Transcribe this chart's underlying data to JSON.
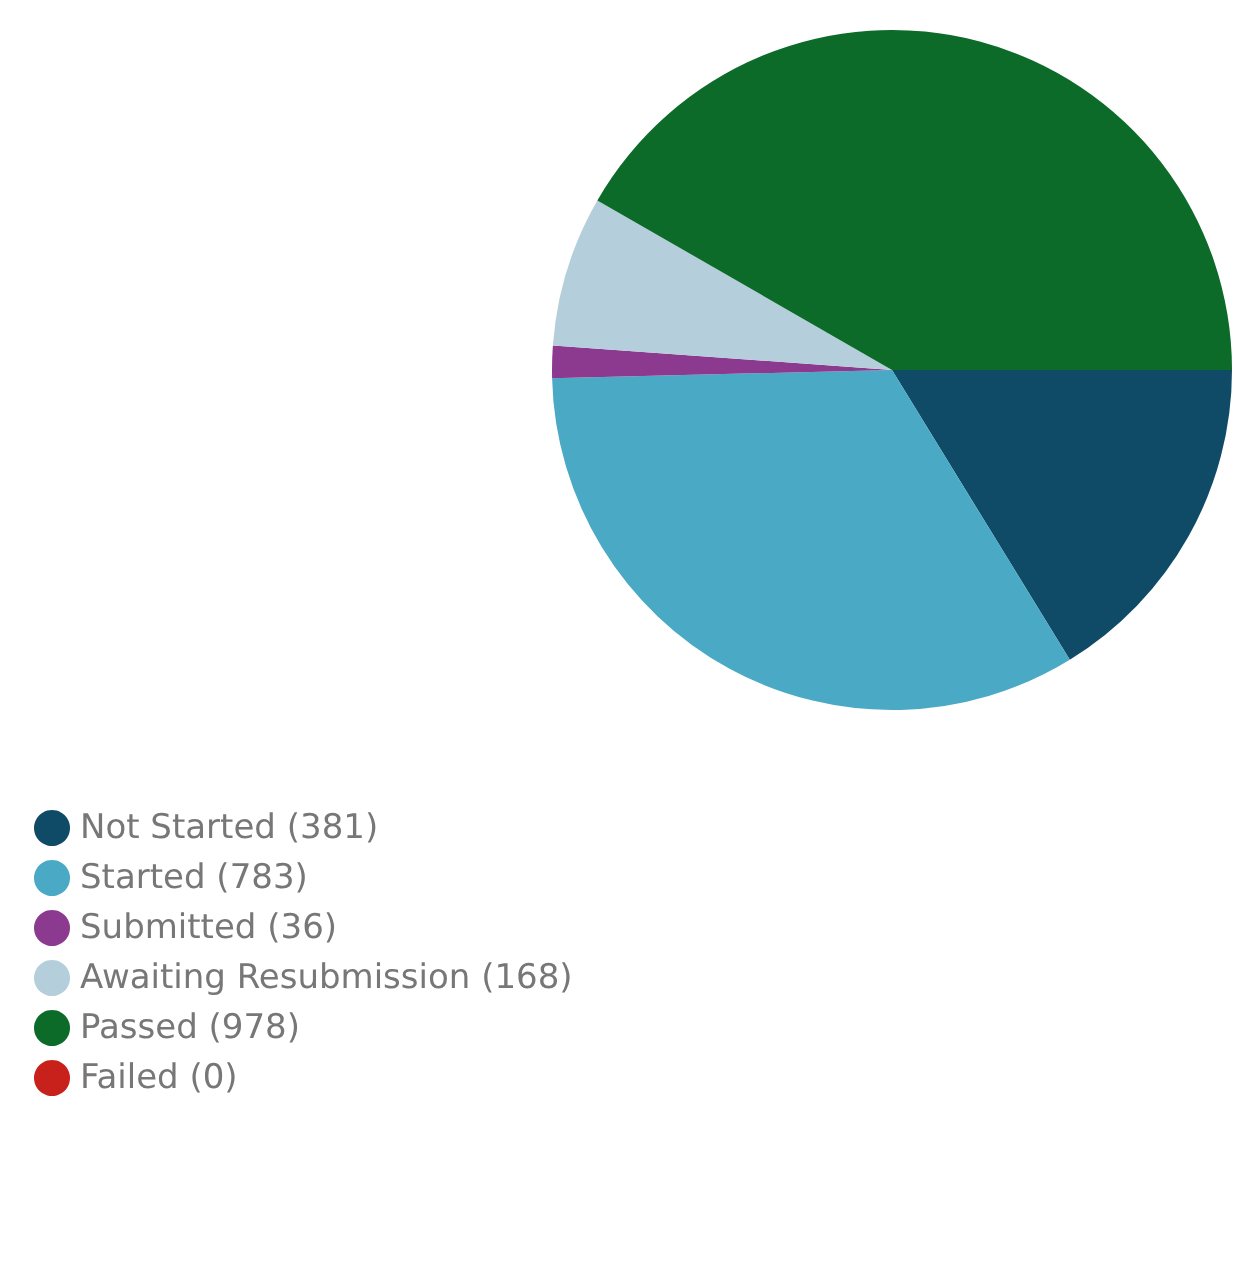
{
  "chart_data": {
    "type": "pie",
    "categories": [
      "Not Started (381)",
      "Started (783)",
      "Submitted (36)",
      "Awaiting Resubmission (168)",
      "Passed (978)",
      "Failed (0)"
    ],
    "values": [
      381,
      783,
      36,
      168,
      978,
      0
    ],
    "colors": [
      "#0f4a66",
      "#4aa9c4",
      "#8b3a8f",
      "#b5cedb",
      "#0d6b2a",
      "#c8201a"
    ],
    "legend": "bottom left"
  }
}
